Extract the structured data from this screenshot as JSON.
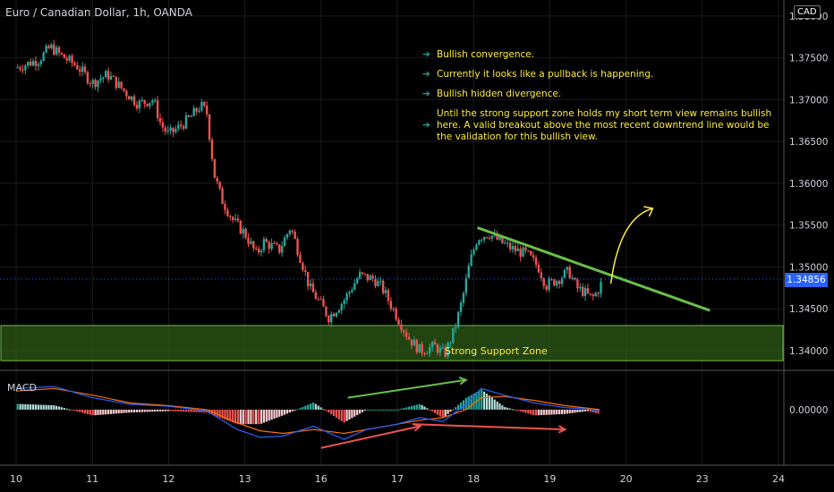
{
  "header": {
    "title": "Euro / Canadian Dollar, 1h, OANDA",
    "currency_badge": "CAD",
    "last_price": "1.34856",
    "macd_label": "MACD"
  },
  "annotations": {
    "notes": [
      "Bullish convergence.",
      "Currently it looks like a pullback is happening.",
      "Bullish hidden divergence.",
      "Until the strong support zone holds my short term view remains bullish here. A valid breakout above the most recent downtrend line would be the validation for this bullish view."
    ],
    "zone_label": "Strong Support Zone"
  },
  "colors": {
    "up": "#26a69a",
    "down": "#ef5350",
    "trendline": "#6abf4b",
    "zone_fill": "#2e5b16",
    "projection": "#ffeb3b",
    "macd_line": "#2962ff",
    "signal_line": "#ff6d00",
    "last_price": "#2962ff"
  },
  "chart_data": [
    {
      "type": "candlestick",
      "title": "Euro / Canadian Dollar, 1h, OANDA",
      "x_ticks": [
        "10",
        "11",
        "12",
        "13",
        "16",
        "17",
        "18",
        "19",
        "20",
        "23",
        "24"
      ],
      "y_ticks": [
        "1.34000",
        "1.34500",
        "1.35000",
        "1.35500",
        "1.36000",
        "1.36500",
        "1.37000",
        "1.37500",
        "1.38000"
      ],
      "ylim": [
        1.3385,
        1.3802
      ],
      "last_price": 1.34856,
      "close_path": [
        [
          0,
          1.3738
        ],
        [
          0.3,
          1.3748
        ],
        [
          0.45,
          1.3763
        ],
        [
          0.6,
          1.3752
        ],
        [
          0.8,
          1.374
        ],
        [
          1.0,
          1.372
        ],
        [
          1.2,
          1.373
        ],
        [
          1.4,
          1.3712
        ],
        [
          1.6,
          1.3695
        ],
        [
          1.8,
          1.37
        ],
        [
          1.9,
          1.367
        ],
        [
          2.0,
          1.3658
        ],
        [
          2.15,
          1.3668
        ],
        [
          2.3,
          1.368
        ],
        [
          2.42,
          1.3693
        ],
        [
          2.5,
          1.3685
        ],
        [
          2.6,
          1.361
        ],
        [
          2.7,
          1.358
        ],
        [
          2.85,
          1.3555
        ],
        [
          3.0,
          1.354
        ],
        [
          3.15,
          1.3515
        ],
        [
          3.25,
          1.353
        ],
        [
          3.45,
          1.352
        ],
        [
          3.6,
          1.3548
        ],
        [
          3.75,
          1.3505
        ],
        [
          3.85,
          1.3475
        ],
        [
          4.0,
          1.3455
        ],
        [
          4.1,
          1.344
        ],
        [
          4.3,
          1.346
        ],
        [
          4.5,
          1.349
        ],
        [
          4.7,
          1.3485
        ],
        [
          4.8,
          1.3475
        ],
        [
          5.0,
          1.344
        ],
        [
          5.15,
          1.3415
        ],
        [
          5.3,
          1.34
        ],
        [
          5.5,
          1.3405
        ],
        [
          5.62,
          1.3395
        ],
        [
          5.75,
          1.3425
        ],
        [
          5.85,
          1.346
        ],
        [
          5.95,
          1.3505
        ],
        [
          6.05,
          1.3535
        ],
        [
          6.2,
          1.354
        ],
        [
          6.35,
          1.353
        ],
        [
          6.5,
          1.3522
        ],
        [
          6.7,
          1.3515
        ],
        [
          6.85,
          1.35
        ],
        [
          6.95,
          1.3478
        ],
        [
          7.1,
          1.3485
        ],
        [
          7.25,
          1.3495
        ],
        [
          7.35,
          1.3475
        ],
        [
          7.45,
          1.347
        ],
        [
          7.55,
          1.3462
        ],
        [
          7.62,
          1.347
        ],
        [
          7.7,
          1.3485
        ]
      ],
      "trendline": {
        "from": [
          6.05,
          1.3547
        ],
        "to": [
          9.1,
          1.3448
        ]
      },
      "support_zone": [
        1.3388,
        1.343
      ],
      "projection_arrow": {
        "from": [
          7.8,
          1.348
        ],
        "to": [
          8.35,
          1.357
        ]
      }
    },
    {
      "type": "macd",
      "title": "MACD",
      "y_ticks": [
        "0.00000"
      ],
      "ylim": [
        -0.0008,
        0.0005
      ],
      "macd_line": [
        [
          0,
          0.00032
        ],
        [
          0.5,
          0.00035
        ],
        [
          1.0,
          0.00018
        ],
        [
          1.5,
          8e-05
        ],
        [
          2.0,
          5e-05
        ],
        [
          2.5,
          -2e-05
        ],
        [
          2.9,
          -0.0003
        ],
        [
          3.2,
          -0.00042
        ],
        [
          3.5,
          -0.0004
        ],
        [
          3.9,
          -0.00025
        ],
        [
          4.3,
          -0.00045
        ],
        [
          4.6,
          -0.0003
        ],
        [
          5.0,
          -0.00022
        ],
        [
          5.3,
          -0.00012
        ],
        [
          5.6,
          -0.00018
        ],
        [
          5.9,
          8e-05
        ],
        [
          6.1,
          0.00032
        ],
        [
          6.4,
          0.00022
        ],
        [
          6.8,
          0.0001
        ],
        [
          7.2,
          3e-05
        ],
        [
          7.5,
          1e-05
        ],
        [
          7.65,
          -3e-05
        ]
      ],
      "signal_line": [
        [
          0,
          0.00028
        ],
        [
          0.5,
          0.00032
        ],
        [
          1.0,
          0.00022
        ],
        [
          1.5,
          0.0001
        ],
        [
          2.0,
          6e-05
        ],
        [
          2.5,
          0.0
        ],
        [
          2.9,
          -0.0002
        ],
        [
          3.2,
          -0.00032
        ],
        [
          3.5,
          -0.00036
        ],
        [
          3.9,
          -0.0003
        ],
        [
          4.3,
          -0.00036
        ],
        [
          4.6,
          -0.0003
        ],
        [
          5.0,
          -0.00022
        ],
        [
          5.3,
          -0.00016
        ],
        [
          5.6,
          -0.00012
        ],
        [
          5.9,
          0.0
        ],
        [
          6.1,
          0.00018
        ],
        [
          6.4,
          0.0002
        ],
        [
          6.8,
          0.00014
        ],
        [
          7.2,
          6e-05
        ],
        [
          7.5,
          2e-05
        ],
        [
          7.65,
          0.0
        ]
      ],
      "arrows": [
        {
          "name": "hidden-divergence-arrow-1",
          "color": "#ef5350",
          "from": [
            4.0,
            -0.00058
          ],
          "to": [
            5.3,
            -0.00025
          ]
        },
        {
          "name": "hidden-divergence-arrow-2",
          "color": "#ef5350",
          "from": [
            5.2,
            -0.00022
          ],
          "to": [
            7.2,
            -0.0003
          ]
        },
        {
          "name": "convergence-arrow",
          "color": "#6abf4b",
          "from": [
            4.35,
            0.00018
          ],
          "to": [
            5.9,
            0.00045
          ]
        }
      ]
    }
  ]
}
